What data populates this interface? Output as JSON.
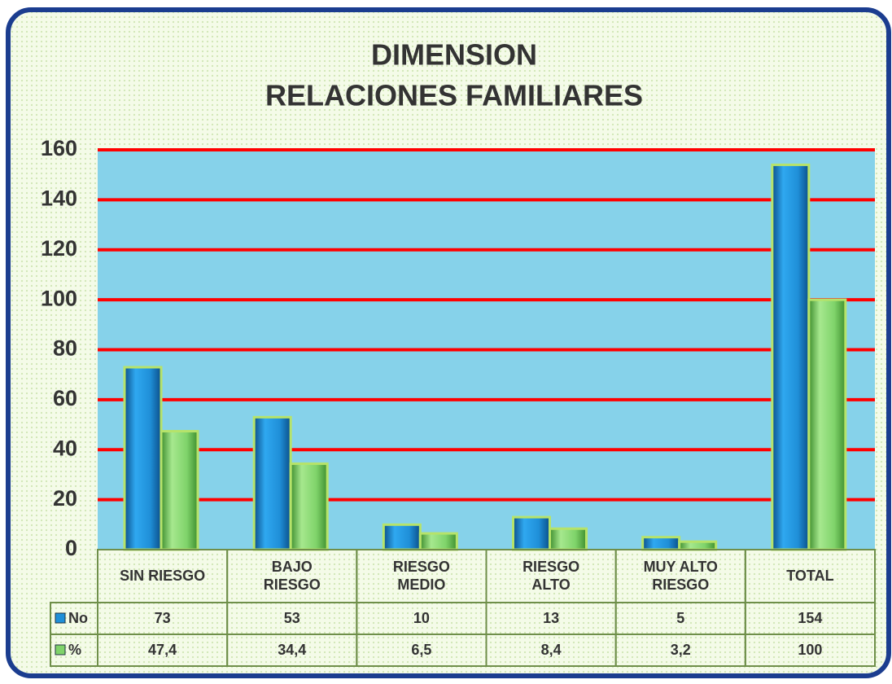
{
  "chart_data": {
    "type": "bar",
    "title": "DIMENSION",
    "subtitle": "RELACIONES FAMILIARES",
    "categories": [
      "SIN RIESGO",
      "BAJO\nRIESGO",
      "RIESGO\nMEDIO",
      "RIESGO\nALTO",
      "MUY ALTO\nRIESGO",
      "TOTAL"
    ],
    "series": [
      {
        "name": "No",
        "color": "#1f8fd8",
        "values": [
          73,
          53,
          10,
          13,
          5,
          154
        ]
      },
      {
        "name": "%",
        "color": "#7fd36a",
        "values": [
          47.4,
          34.4,
          6.5,
          8.4,
          3.2,
          100
        ],
        "value_labels": [
          "47,4",
          "34,4",
          "6,5",
          "8,4",
          "3,2",
          "100"
        ]
      }
    ],
    "ylim": [
      0,
      160
    ],
    "yticks": [
      0,
      20,
      40,
      60,
      80,
      100,
      120,
      140,
      160
    ],
    "grid": true,
    "grid_color": "#ff0000"
  }
}
